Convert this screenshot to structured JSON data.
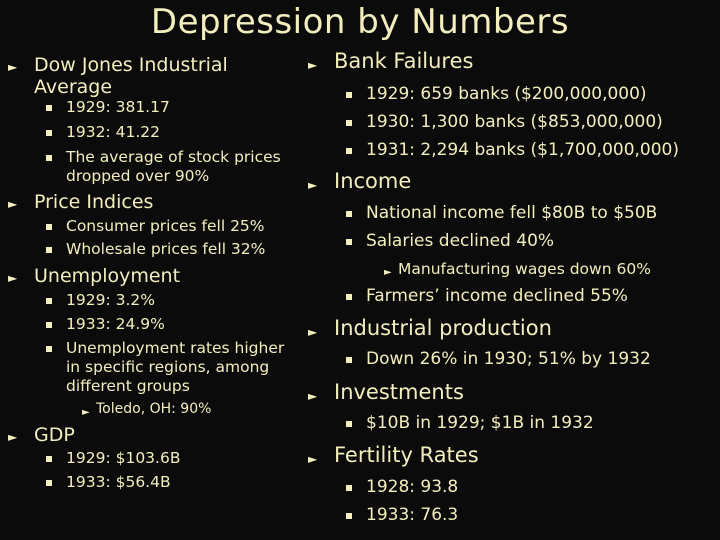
{
  "slide": {
    "title": "Depression by Numbers",
    "left": {
      "dow": {
        "label": "Dow Jones Industrial Average",
        "items": [
          "1929: 381.17",
          "1932: 41.22",
          "The average of stock prices dropped over 90%"
        ]
      },
      "price": {
        "label": "Price Indices",
        "items": [
          "Consumer prices fell 25%",
          "Wholesale prices fell 32%"
        ]
      },
      "unemployment": {
        "label": "Unemployment",
        "items": [
          "1929: 3.2%",
          "1933: 24.9%",
          "Unemployment rates higher in specific regions, among different groups"
        ],
        "sub": "Toledo, OH: 90%"
      },
      "gdp": {
        "label": "GDP",
        "items": [
          "1929: $103.6B",
          "1933: $56.4B"
        ]
      }
    },
    "right": {
      "banks": {
        "label": "Bank Failures",
        "items": [
          "1929: 659 banks ($200,000,000)",
          "1930: 1,300 banks ($853,000,000)",
          "1931: 2,294 banks ($1,700,000,000)"
        ]
      },
      "income": {
        "label": "Income",
        "items": [
          "National income fell $80B to $50B",
          "Salaries declined 40%",
          "Farmers’ income declined 55%"
        ],
        "sub": "Manufacturing wages down 60%"
      },
      "industrial": {
        "label": "Industrial production",
        "items": [
          "Down 26% in 1930; 51% by 1932"
        ]
      },
      "investments": {
        "label": "Investments",
        "items": [
          "$10B in 1929; $1B in 1932"
        ]
      },
      "fertility": {
        "label": "Fertility Rates",
        "items": [
          "1928: 93.8",
          "1933: 76.3"
        ]
      }
    },
    "icons": {
      "level1": "arrow-right-icon",
      "level2": "square-bullet-icon"
    },
    "colors": {
      "background": "#0b0b0b",
      "text": "#f3eebd"
    }
  }
}
